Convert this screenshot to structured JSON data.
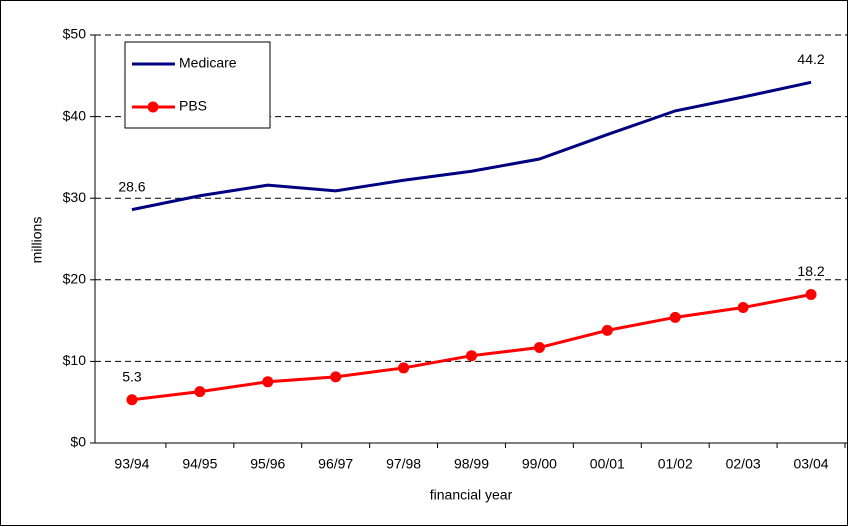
{
  "chart_data": {
    "type": "line",
    "x_label": "financial year",
    "y_label": "millions",
    "categories": [
      "93/94",
      "94/95",
      "95/96",
      "96/97",
      "97/98",
      "98/99",
      "99/00",
      "00/01",
      "01/02",
      "02/03",
      "03/04"
    ],
    "series": [
      {
        "name": "Medicare",
        "color": "#000080",
        "marker": false,
        "values": [
          28.6,
          30.3,
          31.6,
          30.9,
          32.2,
          33.3,
          34.8,
          37.8,
          40.7,
          42.4,
          44.2
        ]
      },
      {
        "name": "PBS",
        "color": "#ff0000",
        "marker": true,
        "values": [
          5.3,
          6.3,
          7.5,
          8.1,
          9.2,
          10.7,
          11.7,
          13.8,
          15.4,
          16.6,
          18.2
        ]
      }
    ],
    "ylim": [
      0,
      50
    ],
    "yticks": [
      {
        "value": 0,
        "label": "$0"
      },
      {
        "value": 10,
        "label": "$10"
      },
      {
        "value": 20,
        "label": "$20"
      },
      {
        "value": 30,
        "label": "$30"
      },
      {
        "value": 40,
        "label": "$40"
      },
      {
        "value": 50,
        "label": "$50"
      }
    ],
    "grid": true,
    "legend": "top-left"
  }
}
